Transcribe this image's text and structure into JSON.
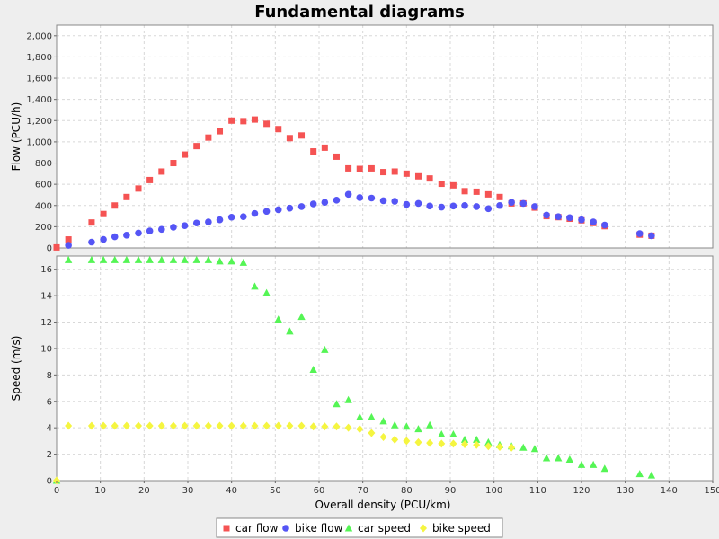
{
  "chart_data": {
    "type": "scatter",
    "title": "Fundamental diagrams",
    "xlabel": "Overall density (PCU/km)",
    "xlim": [
      0,
      150
    ],
    "xticks": [
      0,
      10,
      20,
      30,
      40,
      50,
      60,
      70,
      80,
      90,
      100,
      110,
      120,
      130,
      140,
      150
    ],
    "grid": true,
    "legend_position": "bottom",
    "panels": [
      {
        "ylabel": "Flow (PCU/h)",
        "ylim": [
          0,
          2100
        ],
        "yticks": [
          0,
          200,
          400,
          600,
          800,
          1000,
          1200,
          1400,
          1600,
          1800,
          2000
        ],
        "ytick_labels": [
          "0",
          "200",
          "400",
          "600",
          "800",
          "1,000",
          "1,200",
          "1,400",
          "1,600",
          "1,800",
          "2,000"
        ],
        "series": [
          {
            "name": "car flow",
            "marker": "square",
            "color": "#f55353",
            "points": [
              [
                0,
                5
              ],
              [
                2.7,
                80
              ],
              [
                8,
                240
              ],
              [
                10.7,
                320
              ],
              [
                13.3,
                400
              ],
              [
                16,
                480
              ],
              [
                18.7,
                560
              ],
              [
                21.3,
                640
              ],
              [
                24,
                720
              ],
              [
                26.7,
                800
              ],
              [
                29.3,
                880
              ],
              [
                32,
                960
              ],
              [
                34.7,
                1040
              ],
              [
                37.3,
                1100
              ],
              [
                40,
                1200
              ],
              [
                42.7,
                1195
              ],
              [
                45.3,
                1210
              ],
              [
                48,
                1170
              ],
              [
                50.7,
                1120
              ],
              [
                53.3,
                1035
              ],
              [
                56,
                1060
              ],
              [
                58.7,
                910
              ],
              [
                61.3,
                945
              ],
              [
                64,
                860
              ],
              [
                66.7,
                750
              ],
              [
                69.3,
                745
              ],
              [
                72,
                750
              ],
              [
                74.7,
                715
              ],
              [
                77.3,
                720
              ],
              [
                80,
                700
              ],
              [
                82.7,
                675
              ],
              [
                85.3,
                655
              ],
              [
                88,
                605
              ],
              [
                90.7,
                590
              ],
              [
                93.3,
                535
              ],
              [
                96,
                530
              ],
              [
                98.7,
                505
              ],
              [
                101.3,
                480
              ],
              [
                104,
                420
              ],
              [
                106.7,
                420
              ],
              [
                109.3,
                380
              ],
              [
                112,
                300
              ],
              [
                114.7,
                290
              ],
              [
                117.3,
                275
              ],
              [
                120,
                260
              ],
              [
                122.7,
                235
              ],
              [
                125.3,
                205
              ],
              [
                133.3,
                125
              ],
              [
                136,
                115
              ]
            ]
          },
          {
            "name": "bike flow",
            "marker": "circle",
            "color": "#5555f5",
            "points": [
              [
                2.7,
                25
              ],
              [
                8,
                55
              ],
              [
                10.7,
                80
              ],
              [
                13.3,
                105
              ],
              [
                16,
                120
              ],
              [
                18.7,
                140
              ],
              [
                21.3,
                160
              ],
              [
                24,
                175
              ],
              [
                26.7,
                195
              ],
              [
                29.3,
                210
              ],
              [
                32,
                235
              ],
              [
                34.7,
                245
              ],
              [
                37.3,
                265
              ],
              [
                40,
                290
              ],
              [
                42.7,
                295
              ],
              [
                45.3,
                325
              ],
              [
                48,
                345
              ],
              [
                50.7,
                360
              ],
              [
                53.3,
                375
              ],
              [
                56,
                390
              ],
              [
                58.7,
                415
              ],
              [
                61.3,
                430
              ],
              [
                64,
                450
              ],
              [
                66.7,
                505
              ],
              [
                69.3,
                475
              ],
              [
                72,
                470
              ],
              [
                74.7,
                445
              ],
              [
                77.3,
                440
              ],
              [
                80,
                410
              ],
              [
                82.7,
                420
              ],
              [
                85.3,
                395
              ],
              [
                88,
                385
              ],
              [
                90.7,
                395
              ],
              [
                93.3,
                400
              ],
              [
                96,
                390
              ],
              [
                98.7,
                370
              ],
              [
                101.3,
                400
              ],
              [
                104,
                430
              ],
              [
                106.7,
                420
              ],
              [
                109.3,
                390
              ],
              [
                112,
                310
              ],
              [
                114.7,
                295
              ],
              [
                117.3,
                285
              ],
              [
                120,
                265
              ],
              [
                122.7,
                245
              ],
              [
                125.3,
                215
              ],
              [
                133.3,
                135
              ],
              [
                136,
                115
              ]
            ]
          }
        ]
      },
      {
        "ylabel": "Speed (m/s)",
        "ylim": [
          0,
          17
        ],
        "yticks": [
          0,
          2,
          4,
          6,
          8,
          10,
          12,
          14,
          16
        ],
        "ytick_labels": [
          "0",
          "2",
          "4",
          "6",
          "8",
          "10",
          "12",
          "14",
          "16"
        ],
        "series": [
          {
            "name": "car speed",
            "marker": "triangle",
            "color": "#55f555",
            "points": [
              [
                0,
                0
              ],
              [
                2.7,
                16.7
              ],
              [
                8,
                16.7
              ],
              [
                10.7,
                16.7
              ],
              [
                13.3,
                16.7
              ],
              [
                16,
                16.7
              ],
              [
                18.7,
                16.7
              ],
              [
                21.3,
                16.7
              ],
              [
                24,
                16.7
              ],
              [
                26.7,
                16.7
              ],
              [
                29.3,
                16.7
              ],
              [
                32,
                16.7
              ],
              [
                34.7,
                16.7
              ],
              [
                37.3,
                16.6
              ],
              [
                40,
                16.6
              ],
              [
                42.7,
                16.5
              ],
              [
                45.3,
                14.7
              ],
              [
                48,
                14.2
              ],
              [
                50.7,
                12.2
              ],
              [
                53.3,
                11.3
              ],
              [
                56,
                12.4
              ],
              [
                58.7,
                8.4
              ],
              [
                61.3,
                9.9
              ],
              [
                64,
                5.8
              ],
              [
                66.7,
                6.1
              ],
              [
                69.3,
                4.8
              ],
              [
                72,
                4.8
              ],
              [
                74.7,
                4.5
              ],
              [
                77.3,
                4.2
              ],
              [
                80,
                4.1
              ],
              [
                82.7,
                3.9
              ],
              [
                85.3,
                4.2
              ],
              [
                88,
                3.5
              ],
              [
                90.7,
                3.5
              ],
              [
                93.3,
                3.1
              ],
              [
                96,
                3.1
              ],
              [
                98.7,
                2.9
              ],
              [
                101.3,
                2.7
              ],
              [
                104,
                2.6
              ],
              [
                106.7,
                2.5
              ],
              [
                109.3,
                2.4
              ],
              [
                112,
                1.7
              ],
              [
                114.7,
                1.7
              ],
              [
                117.3,
                1.6
              ],
              [
                120,
                1.2
              ],
              [
                122.7,
                1.2
              ],
              [
                125.3,
                0.9
              ],
              [
                133.3,
                0.5
              ],
              [
                136,
                0.4
              ]
            ]
          },
          {
            "name": "bike speed",
            "marker": "diamond",
            "color": "#f5f540",
            "points": [
              [
                0,
                0
              ],
              [
                2.7,
                4.15
              ],
              [
                8,
                4.15
              ],
              [
                10.7,
                4.15
              ],
              [
                13.3,
                4.15
              ],
              [
                16,
                4.15
              ],
              [
                18.7,
                4.15
              ],
              [
                21.3,
                4.15
              ],
              [
                24,
                4.15
              ],
              [
                26.7,
                4.15
              ],
              [
                29.3,
                4.15
              ],
              [
                32,
                4.15
              ],
              [
                34.7,
                4.15
              ],
              [
                37.3,
                4.15
              ],
              [
                40,
                4.15
              ],
              [
                42.7,
                4.15
              ],
              [
                45.3,
                4.15
              ],
              [
                48,
                4.15
              ],
              [
                50.7,
                4.15
              ],
              [
                53.3,
                4.15
              ],
              [
                56,
                4.15
              ],
              [
                58.7,
                4.1
              ],
              [
                61.3,
                4.1
              ],
              [
                64,
                4.1
              ],
              [
                66.7,
                4.0
              ],
              [
                69.3,
                3.9
              ],
              [
                72,
                3.6
              ],
              [
                74.7,
                3.3
              ],
              [
                77.3,
                3.1
              ],
              [
                80,
                3.0
              ],
              [
                82.7,
                2.9
              ],
              [
                85.3,
                2.85
              ],
              [
                88,
                2.8
              ],
              [
                90.7,
                2.8
              ],
              [
                93.3,
                2.75
              ],
              [
                96,
                2.7
              ],
              [
                98.7,
                2.6
              ],
              [
                101.3,
                2.55
              ],
              [
                104,
                2.5
              ]
            ]
          }
        ]
      }
    ]
  }
}
